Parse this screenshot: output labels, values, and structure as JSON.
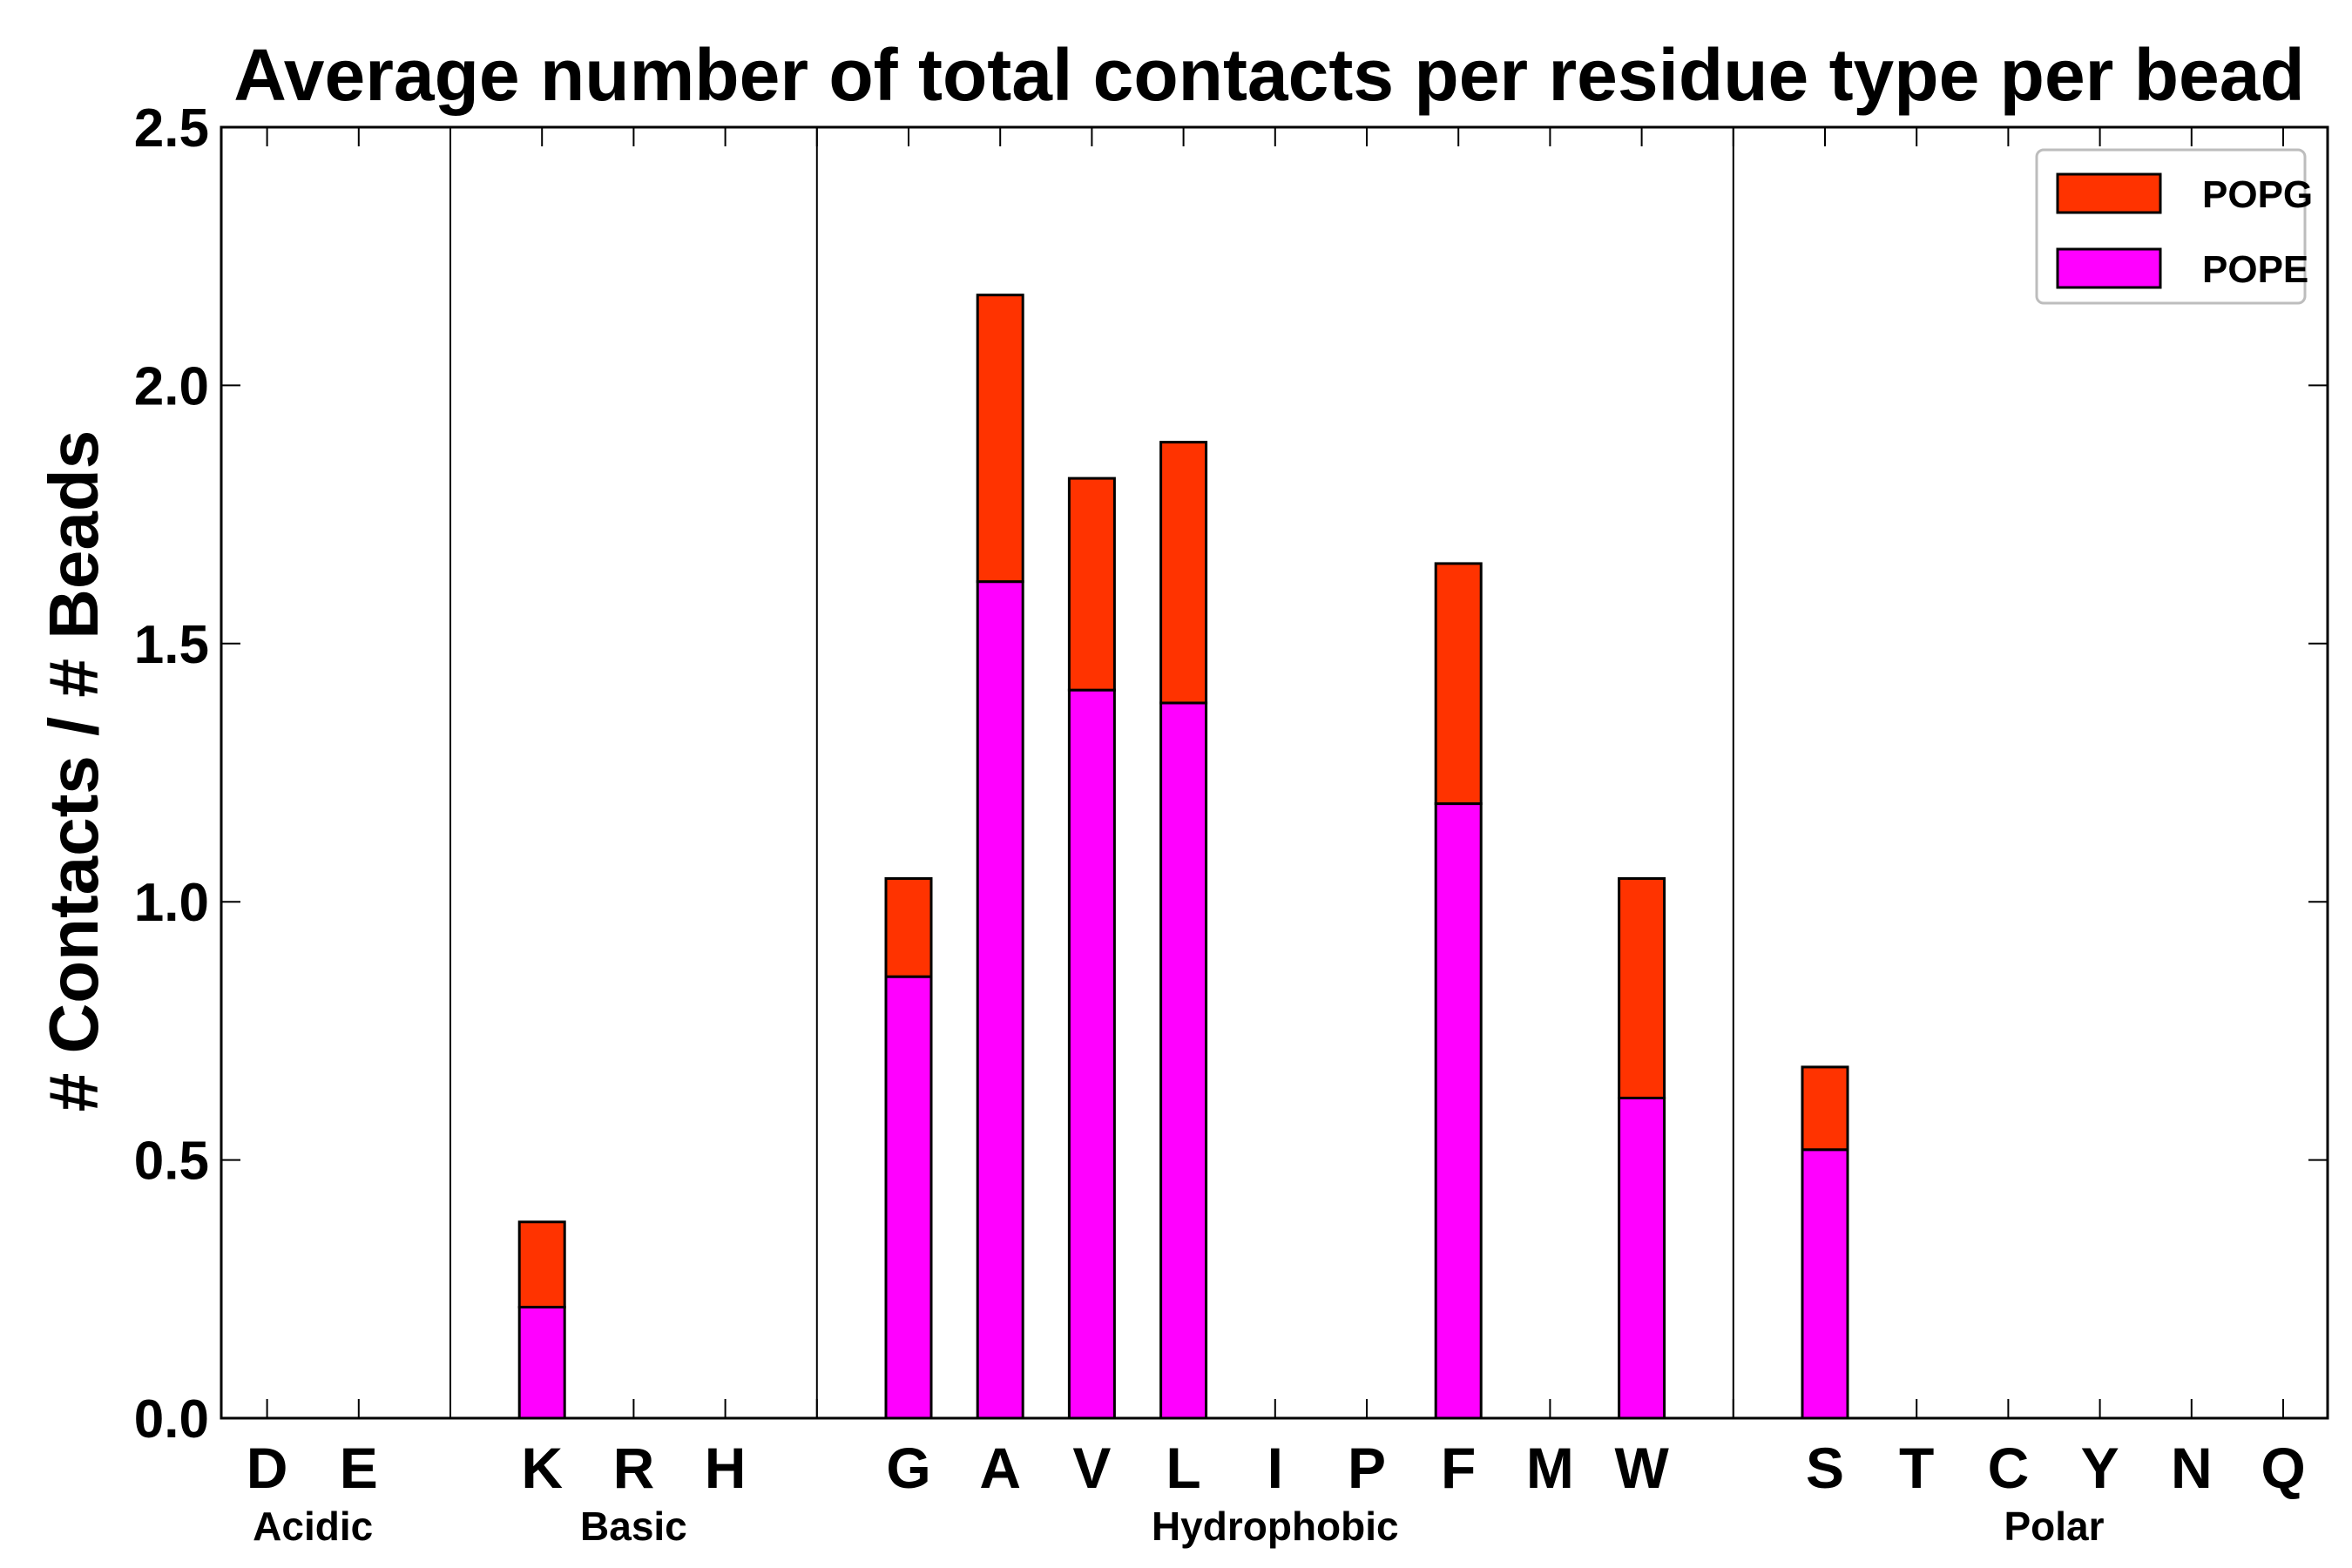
{
  "chart_data": {
    "type": "bar",
    "stacked": true,
    "title": "Average number of total contacts per residue type per bead",
    "xlabel": "",
    "ylabel": "# Contacts / # Beads",
    "ylim": [
      0,
      2.5
    ],
    "yticks": [
      "0.0",
      "0.5",
      "1.0",
      "1.5",
      "2.0",
      "2.5"
    ],
    "categories": [
      "D",
      "E",
      "",
      "K",
      "R",
      "H",
      "",
      "G",
      "A",
      "V",
      "L",
      "I",
      "P",
      "F",
      "M",
      "W",
      "",
      "S",
      "T",
      "C",
      "Y",
      "N",
      "Q"
    ],
    "series": [
      {
        "name": "POPE",
        "color": "#ff00ff",
        "values": [
          0,
          0,
          0,
          0.215,
          0,
          0,
          0,
          0.855,
          1.62,
          1.41,
          1.385,
          0,
          0,
          1.19,
          0,
          0.62,
          0,
          0.52,
          0,
          0,
          0,
          0,
          0
        ]
      },
      {
        "name": "POPG",
        "color": "#ff3300",
        "values": [
          0,
          0,
          0,
          0.165,
          0,
          0,
          0,
          0.19,
          0.555,
          0.41,
          0.505,
          0,
          0,
          0.465,
          0,
          0.425,
          0,
          0.16,
          0,
          0,
          0,
          0,
          0
        ]
      }
    ],
    "groups": [
      {
        "label": "Acidic",
        "first": 0,
        "last": 1
      },
      {
        "label": "Basic",
        "first": 3,
        "last": 5
      },
      {
        "label": "Hydrophobic",
        "first": 7,
        "last": 15
      },
      {
        "label": "Polar",
        "first": 17,
        "last": 22
      }
    ],
    "separators_at": [
      2,
      6,
      16
    ],
    "legend": {
      "location": "top-right",
      "entries": [
        {
          "name": "POPG",
          "color": "#ff3300"
        },
        {
          "name": "POPE",
          "color": "#ff00ff"
        }
      ]
    },
    "grid": false
  }
}
